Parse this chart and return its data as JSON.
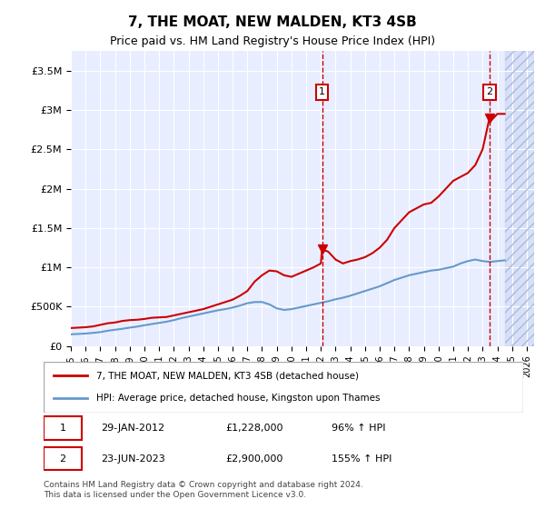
{
  "title": "7, THE MOAT, NEW MALDEN, KT3 4SB",
  "subtitle": "Price paid vs. HM Land Registry's House Price Index (HPI)",
  "ylabel": "",
  "xlabel": "",
  "background_color": "#f0f4ff",
  "plot_bg_color": "#e8eeff",
  "hatch_color": "#c8d4f0",
  "grid_color": "#ffffff",
  "red_line_color": "#cc0000",
  "blue_line_color": "#6699cc",
  "ylim": [
    0,
    3750000
  ],
  "xlim_start": 1995.0,
  "xlim_end": 2026.5,
  "yticks": [
    0,
    500000,
    1000000,
    1500000,
    2000000,
    2500000,
    3000000,
    3500000
  ],
  "ytick_labels": [
    "£0",
    "£500K",
    "£1M",
    "£1.5M",
    "£2M",
    "£2.5M",
    "£3M",
    "£3.5M"
  ],
  "xticks": [
    1995,
    1996,
    1997,
    1998,
    1999,
    2000,
    2001,
    2002,
    2003,
    2004,
    2005,
    2006,
    2007,
    2008,
    2009,
    2010,
    2011,
    2012,
    2013,
    2014,
    2015,
    2016,
    2017,
    2018,
    2019,
    2020,
    2021,
    2022,
    2023,
    2024,
    2025,
    2026
  ],
  "marker1_x": 2012.08,
  "marker1_y": 1228000,
  "marker1_label": "1",
  "marker1_date": "29-JAN-2012",
  "marker1_price": "£1,228,000",
  "marker1_hpi": "96% ↑ HPI",
  "marker2_x": 2023.47,
  "marker2_y": 2900000,
  "marker2_label": "2",
  "marker2_date": "23-JUN-2023",
  "marker2_price": "£2,900,000",
  "marker2_hpi": "155% ↑ HPI",
  "legend_red": "7, THE MOAT, NEW MALDEN, KT3 4SB (detached house)",
  "legend_blue": "HPI: Average price, detached house, Kingston upon Thames",
  "footer": "Contains HM Land Registry data © Crown copyright and database right 2024.\nThis data is licensed under the Open Government Licence v3.0.",
  "hatch_start": 2024.5,
  "red_x": [
    1995.0,
    1995.5,
    1996.0,
    1996.5,
    1997.0,
    1997.5,
    1998.0,
    1998.5,
    1999.0,
    1999.5,
    2000.0,
    2000.5,
    2001.0,
    2001.5,
    2002.0,
    2002.5,
    2003.0,
    2003.5,
    2004.0,
    2004.5,
    2005.0,
    2005.5,
    2006.0,
    2006.5,
    2007.0,
    2007.5,
    2008.0,
    2008.5,
    2009.0,
    2009.5,
    2010.0,
    2010.5,
    2011.0,
    2011.5,
    2012.0,
    2012.08,
    2012.5,
    2013.0,
    2013.5,
    2014.0,
    2014.5,
    2015.0,
    2015.5,
    2016.0,
    2016.5,
    2017.0,
    2017.5,
    2018.0,
    2018.5,
    2019.0,
    2019.5,
    2020.0,
    2020.5,
    2021.0,
    2021.5,
    2022.0,
    2022.5,
    2023.0,
    2023.47,
    2023.5,
    2024.0,
    2024.5
  ],
  "red_y": [
    230000,
    235000,
    240000,
    250000,
    270000,
    290000,
    300000,
    320000,
    330000,
    335000,
    345000,
    360000,
    365000,
    370000,
    390000,
    410000,
    430000,
    450000,
    470000,
    500000,
    530000,
    560000,
    590000,
    640000,
    700000,
    820000,
    900000,
    960000,
    950000,
    900000,
    880000,
    920000,
    960000,
    1000000,
    1050000,
    1228000,
    1200000,
    1100000,
    1050000,
    1080000,
    1100000,
    1130000,
    1180000,
    1250000,
    1350000,
    1500000,
    1600000,
    1700000,
    1750000,
    1800000,
    1820000,
    1900000,
    2000000,
    2100000,
    2150000,
    2200000,
    2300000,
    2500000,
    2900000,
    2850000,
    2950000,
    2950000
  ],
  "blue_x": [
    1995.0,
    1995.5,
    1996.0,
    1996.5,
    1997.0,
    1997.5,
    1998.0,
    1998.5,
    1999.0,
    1999.5,
    2000.0,
    2000.5,
    2001.0,
    2001.5,
    2002.0,
    2002.5,
    2003.0,
    2003.5,
    2004.0,
    2004.5,
    2005.0,
    2005.5,
    2006.0,
    2006.5,
    2007.0,
    2007.5,
    2008.0,
    2008.5,
    2009.0,
    2009.5,
    2010.0,
    2010.5,
    2011.0,
    2011.5,
    2012.0,
    2012.5,
    2013.0,
    2013.5,
    2014.0,
    2014.5,
    2015.0,
    2015.5,
    2016.0,
    2016.5,
    2017.0,
    2017.5,
    2018.0,
    2018.5,
    2019.0,
    2019.5,
    2020.0,
    2020.5,
    2021.0,
    2021.5,
    2022.0,
    2022.5,
    2023.0,
    2023.5,
    2024.0,
    2024.5
  ],
  "blue_y": [
    150000,
    155000,
    160000,
    168000,
    178000,
    195000,
    208000,
    220000,
    235000,
    248000,
    265000,
    280000,
    295000,
    310000,
    330000,
    355000,
    375000,
    395000,
    415000,
    435000,
    455000,
    470000,
    490000,
    515000,
    545000,
    560000,
    560000,
    530000,
    480000,
    460000,
    470000,
    490000,
    510000,
    530000,
    550000,
    570000,
    595000,
    615000,
    640000,
    670000,
    700000,
    730000,
    760000,
    800000,
    840000,
    870000,
    900000,
    920000,
    940000,
    960000,
    970000,
    990000,
    1010000,
    1050000,
    1080000,
    1100000,
    1080000,
    1070000,
    1080000,
    1090000
  ]
}
